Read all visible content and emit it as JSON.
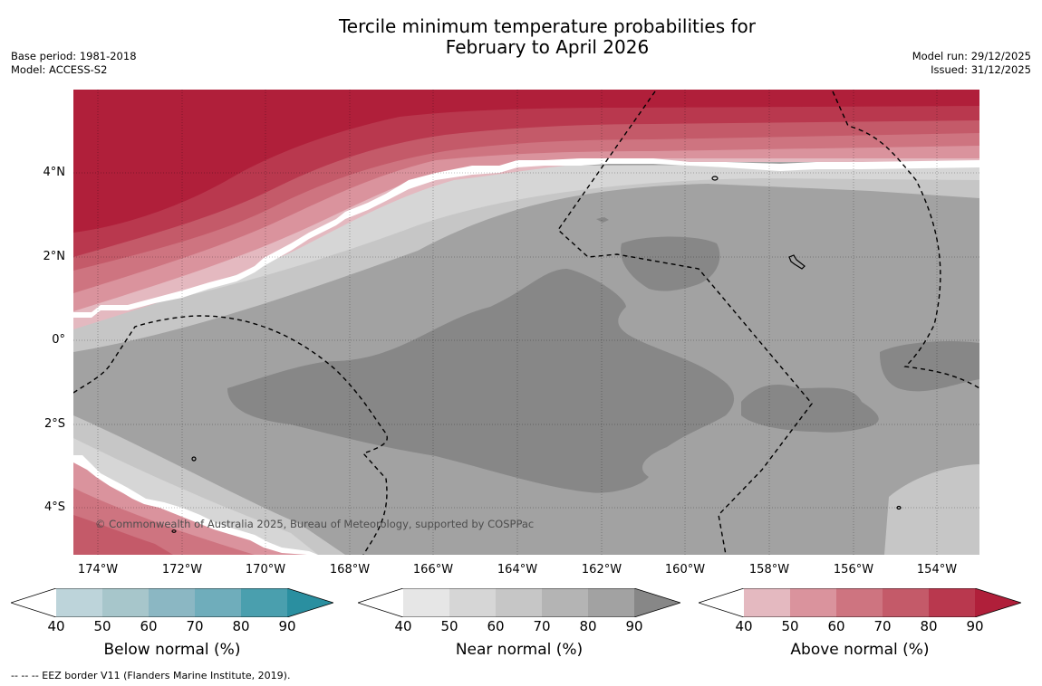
{
  "title": {
    "line1": "Tercile minimum temperature probabilities for",
    "line2": "February to April 2026"
  },
  "meta": {
    "base_period": "Base period: 1981-2018",
    "model": "Model: ACCESS-S2",
    "model_run": "Model run: 29/12/2025",
    "issued": "Issued: 31/12/2025"
  },
  "map": {
    "lat_labels": [
      "4°N",
      "2°N",
      "0°",
      "2°S",
      "4°S"
    ],
    "lon_labels": [
      "174°W",
      "172°W",
      "170°W",
      "168°W",
      "166°W",
      "164°W",
      "162°W",
      "160°W",
      "158°W",
      "156°W",
      "154°W"
    ],
    "copyright": "© Commonwealth of Australia 2025, Bureau of Meteorology, supported by COSPPac"
  },
  "legends": [
    {
      "title": "Below normal (%)",
      "ticks": [
        "40",
        "50",
        "60",
        "70",
        "80",
        "90"
      ],
      "colors": [
        "#ffffff",
        "#bdd4da",
        "#a7c6cb",
        "#8bb7c3",
        "#6fadbb",
        "#4a9fae",
        "#2a8fa0"
      ]
    },
    {
      "title": "Near normal (%)",
      "ticks": [
        "40",
        "50",
        "60",
        "70",
        "80",
        "90"
      ],
      "colors": [
        "#ffffff",
        "#e6e6e6",
        "#d6d6d6",
        "#c6c6c6",
        "#b4b4b4",
        "#a2a2a2",
        "#878787"
      ]
    },
    {
      "title": "Above normal (%)",
      "ticks": [
        "40",
        "50",
        "60",
        "70",
        "80",
        "90"
      ],
      "colors": [
        "#ffffff",
        "#e4b9c0",
        "#da939d",
        "#ce7480",
        "#c45a69",
        "#b9384e",
        "#b01f3a"
      ]
    }
  ],
  "footnote": "--  --  -- EEZ border V11 (Flanders Marine Institute, 2019)."
}
